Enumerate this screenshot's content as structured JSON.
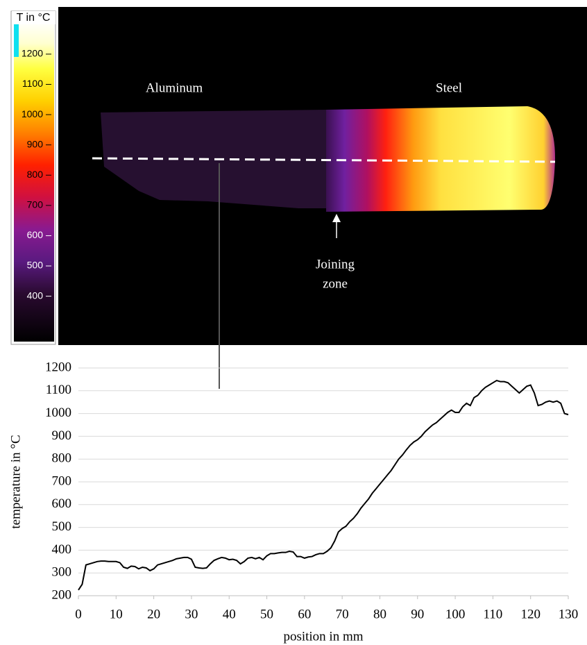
{
  "chart_data": [
    {
      "type": "thermal",
      "colorbar_title": "T in °C",
      "clim": [
        250,
        1310
      ],
      "cticks": [
        400,
        500,
        600,
        700,
        800,
        900,
        1000,
        1100,
        1200
      ],
      "region_labels": [
        "Aluminum",
        "Steel"
      ],
      "arrow_label": [
        "Joining",
        "zone"
      ]
    },
    {
      "type": "line",
      "xlabel": "position in mm",
      "ylabel": "temperature in °C",
      "color": "#000000",
      "grid": true,
      "xlim": [
        0,
        130
      ],
      "ylim": [
        200,
        1200
      ],
      "xticks": [
        0,
        10,
        20,
        30,
        40,
        50,
        60,
        70,
        80,
        90,
        100,
        110,
        120,
        130
      ],
      "yticks": [
        200,
        300,
        400,
        500,
        600,
        700,
        800,
        900,
        1000,
        1100,
        1200
      ],
      "x": [
        0,
        1,
        2,
        3,
        4,
        5,
        6,
        7,
        8,
        9,
        10,
        11,
        12,
        13,
        14,
        15,
        16,
        17,
        18,
        19,
        20,
        21,
        22,
        23,
        24,
        25,
        26,
        27,
        28,
        29,
        30,
        31,
        32,
        33,
        34,
        35,
        36,
        37,
        38,
        39,
        40,
        41,
        42,
        43,
        44,
        45,
        46,
        47,
        48,
        49,
        50,
        51,
        52,
        53,
        54,
        55,
        56,
        57,
        58,
        59,
        60,
        61,
        62,
        63,
        64,
        65,
        66,
        67,
        68,
        69,
        70,
        71,
        72,
        73,
        74,
        75,
        76,
        77,
        78,
        79,
        80,
        81,
        82,
        83,
        84,
        85,
        86,
        87,
        88,
        89,
        90,
        91,
        92,
        93,
        94,
        95,
        96,
        97,
        98,
        99,
        100,
        101,
        102,
        103,
        104,
        105,
        106,
        107,
        108,
        109,
        110,
        111,
        112,
        113,
        114,
        115,
        116,
        117,
        118,
        119,
        120,
        121,
        122,
        123,
        124,
        125,
        126,
        127,
        128,
        129,
        130
      ],
      "values": [
        225,
        250,
        335,
        340,
        345,
        350,
        352,
        352,
        350,
        350,
        350,
        345,
        325,
        320,
        330,
        328,
        318,
        325,
        322,
        310,
        318,
        335,
        340,
        345,
        350,
        355,
        362,
        365,
        368,
        368,
        360,
        325,
        322,
        320,
        322,
        340,
        355,
        362,
        368,
        365,
        358,
        360,
        355,
        340,
        350,
        365,
        368,
        362,
        368,
        358,
        375,
        385,
        385,
        388,
        390,
        390,
        395,
        392,
        372,
        372,
        365,
        370,
        372,
        380,
        385,
        385,
        395,
        410,
        440,
        480,
        495,
        505,
        525,
        540,
        560,
        585,
        605,
        625,
        650,
        670,
        690,
        710,
        730,
        750,
        775,
        800,
        818,
        840,
        860,
        875,
        885,
        900,
        920,
        935,
        950,
        960,
        975,
        990,
        1005,
        1015,
        1005,
        1005,
        1030,
        1045,
        1035,
        1070,
        1080,
        1100,
        1115,
        1125,
        1135,
        1145,
        1140,
        1140,
        1135,
        1120,
        1105,
        1090,
        1105,
        1120,
        1125,
        1090,
        1035,
        1040,
        1050,
        1055,
        1050,
        1055,
        1045,
        1000,
        995
      ]
    }
  ]
}
